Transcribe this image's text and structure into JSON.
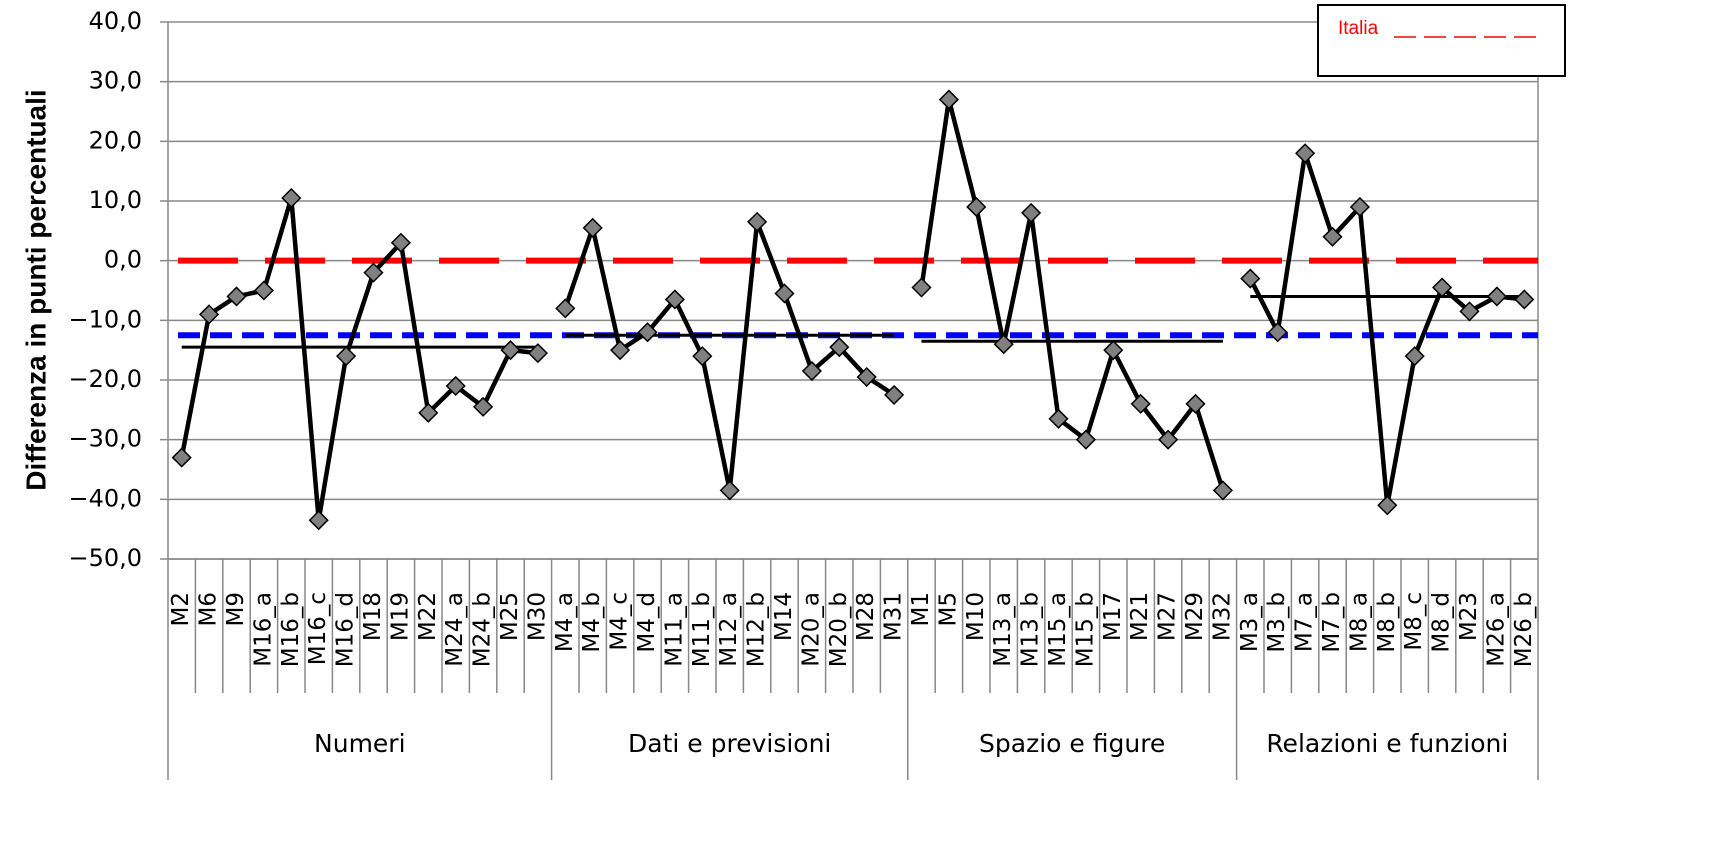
{
  "chart_data": {
    "type": "line",
    "y_label": "Differenza in punti percentuali",
    "ylim": [
      -50,
      40
    ],
    "yticks": [
      {
        "value": -50,
        "label": "−50,0"
      },
      {
        "value": -40,
        "label": "−40,0"
      },
      {
        "value": -30,
        "label": "−30,0"
      },
      {
        "value": -20,
        "label": "−20,0"
      },
      {
        "value": -10,
        "label": "−10,0"
      },
      {
        "value": 0,
        "label": "0,0"
      },
      {
        "value": 10,
        "label": "10,0"
      },
      {
        "value": 20,
        "label": "20,0"
      },
      {
        "value": 30,
        "label": "30,0"
      },
      {
        "value": 40,
        "label": "40,0"
      }
    ],
    "grid": true,
    "line_color": "#000000",
    "marker_color": "#808080",
    "mean_color": "#000000",
    "legend_position": "upper right",
    "groups": [
      {
        "name": "Numeri",
        "categories": [
          "M2",
          "M6",
          "M9",
          "M16_a",
          "M16_b",
          "M16_c",
          "M16_d",
          "M18",
          "M19",
          "M22",
          "M24_a",
          "M24_b",
          "M25",
          "M30"
        ],
        "values": [
          -33,
          -9,
          -6,
          -5,
          10.5,
          -43.5,
          -16,
          -2,
          3,
          -25.5,
          -21,
          -24.5,
          -15,
          -15.5
        ],
        "mean": -14.5
      },
      {
        "name": "Dati e previsioni",
        "categories": [
          "M4_a",
          "M4_b",
          "M4_c",
          "M4_d",
          "M11_a",
          "M11_b",
          "M12_a",
          "M12_b",
          "M14",
          "M20_a",
          "M20_b",
          "M28",
          "M31"
        ],
        "values": [
          -8,
          5.5,
          -15,
          -12,
          -6.5,
          -16,
          -38.5,
          6.5,
          -5.5,
          -18.5,
          -14.5,
          -19.5,
          -22.5
        ],
        "mean": -12.5
      },
      {
        "name": "Spazio e figure",
        "categories": [
          "M1",
          "M5",
          "M10",
          "M13_a",
          "M13_b",
          "M15_a",
          "M15_b",
          "M17",
          "M21",
          "M27",
          "M29",
          "M32"
        ],
        "values": [
          -4.5,
          27,
          9,
          -14,
          8,
          -26.5,
          -30,
          -15,
          -24,
          -30,
          -24,
          -38.5
        ],
        "mean": -13.5
      },
      {
        "name": "Relazioni e funzioni",
        "categories": [
          "M3_a",
          "M3_b",
          "M7_a",
          "M7_b",
          "M8_a",
          "M8_b",
          "M8_c",
          "M8_d",
          "M23",
          "M26_a",
          "M26_b"
        ],
        "values": [
          -3,
          -12,
          18,
          4,
          9,
          -41,
          -16,
          -4.5,
          -8.5,
          -6,
          -6.5
        ],
        "mean": -6
      }
    ],
    "reference_lines": [
      {
        "name": "Italia",
        "value": 0,
        "color": "#ff0000"
      },
      {
        "value": -12.5,
        "color": "#0000ff"
      }
    ]
  }
}
